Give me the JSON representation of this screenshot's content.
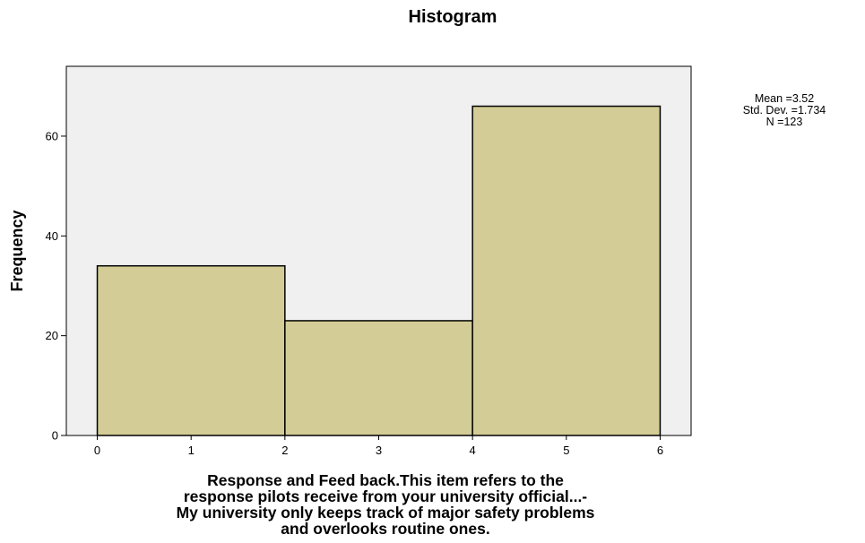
{
  "chart_data": {
    "type": "bar",
    "title": "Histogram",
    "xlabel_lines": [
      "Response and Feed back.This item refers to the",
      "response pilots receive from your university official...-",
      "My university only keeps track of major safety problems",
      "and overlooks routine ones."
    ],
    "ylabel": "Frequency",
    "bins": [
      {
        "x0": 0,
        "x1": 2,
        "value": 34
      },
      {
        "x0": 2,
        "x1": 4,
        "value": 23
      },
      {
        "x0": 4,
        "x1": 6,
        "value": 66
      }
    ],
    "xlim": [
      -0.33,
      6.33
    ],
    "ylim": [
      0,
      74
    ],
    "xticks": [
      0,
      1,
      2,
      3,
      4,
      5,
      6
    ],
    "yticks": [
      0,
      20,
      40,
      60
    ],
    "grid": false,
    "legend": "none",
    "stats": {
      "mean": "Mean =3.52",
      "std_dev": "Std. Dev. =1.734",
      "n": "N =123"
    },
    "colors": {
      "bar_fill": "#d3cc96",
      "bar_stroke": "#000000",
      "plot_background": "#f0f0f0"
    }
  }
}
